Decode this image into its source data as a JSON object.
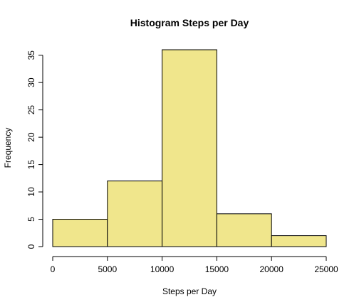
{
  "chart_data": {
    "type": "histogram",
    "title": "Histogram Steps per Day",
    "xlabel": "Steps per Day",
    "ylabel": "Frequency",
    "bins": [
      {
        "from": 0,
        "to": 5000,
        "count": 5
      },
      {
        "from": 5000,
        "to": 10000,
        "count": 12
      },
      {
        "from": 10000,
        "to": 15000,
        "count": 36
      },
      {
        "from": 15000,
        "to": 20000,
        "count": 6
      },
      {
        "from": 20000,
        "to": 25000,
        "count": 2
      }
    ],
    "xlim": [
      0,
      25000
    ],
    "ylim": [
      0,
      36
    ],
    "x_ticks": [
      "0",
      "5000",
      "10000",
      "15000",
      "20000",
      "25000"
    ],
    "y_ticks": [
      "0",
      "5",
      "10",
      "15",
      "20",
      "25",
      "30",
      "35"
    ],
    "bar_color": "#f0e68c",
    "bar_edge_color": "#000000",
    "grid": false,
    "legend": "none"
  }
}
